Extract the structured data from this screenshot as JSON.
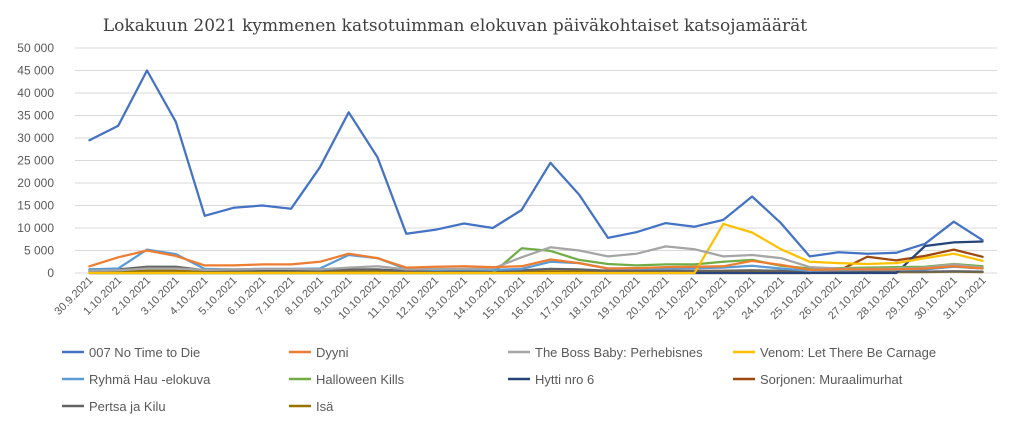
{
  "chart_data": {
    "type": "line",
    "title": "Lokakuun 2021 kymmenen katsotuimman elokuvan päiväkohtaiset katsojamäärät",
    "xlabel": "",
    "ylabel": "",
    "ylim": [
      0,
      50000
    ],
    "yticks": [
      0,
      5000,
      10000,
      15000,
      20000,
      25000,
      30000,
      35000,
      40000,
      45000,
      50000
    ],
    "ytick_labels": [
      "0",
      "5 000",
      "10 000",
      "15 000",
      "20 000",
      "25 000",
      "30 000",
      "35 000",
      "40 000",
      "45 000",
      "50 000"
    ],
    "grid": true,
    "legend_position": "bottom",
    "categories": [
      "30.9.2021",
      "1.10.2021",
      "2.10.2021",
      "3.10.2021",
      "4.10.2021",
      "5.10.2021",
      "6.10.2021",
      "7.10.2021",
      "8.10.2021",
      "9.10.2021",
      "10.10.2021",
      "11.10.2021",
      "12.10.2021",
      "13.10.2021",
      "14.10.2021",
      "15.10.2021",
      "16.10.2021",
      "17.10.2021",
      "18.10.2021",
      "19.10.2021",
      "20.10.2021",
      "21.10.2021",
      "22.10.2021",
      "23.10.2021",
      "24.10.2021",
      "25.10.2021",
      "26.10.2021",
      "27.10.2021",
      "28.10.2021",
      "29.10.2021",
      "30.10.2021",
      "31.10.2021"
    ],
    "series": [
      {
        "name": "007 No Time to Die",
        "color": "#4472c4",
        "values": [
          29500,
          32700,
          45000,
          33600,
          12700,
          14500,
          15000,
          14300,
          23500,
          35700,
          25700,
          8700,
          9600,
          11000,
          10000,
          14000,
          24500,
          17400,
          7800,
          9100,
          11100,
          10300,
          11800,
          17000,
          11100,
          3700,
          4600,
          4300,
          4500,
          6500,
          11400,
          7300
        ]
      },
      {
        "name": "Dyyni",
        "color": "#ed7d31",
        "values": [
          1500,
          3500,
          5000,
          3800,
          1700,
          1700,
          1900,
          1900,
          2500,
          4300,
          3300,
          1200,
          1400,
          1500,
          1300,
          1500,
          3000,
          2200,
          1000,
          1100,
          1300,
          1400,
          1500,
          2700,
          1800,
          700,
          800,
          800,
          800,
          1000,
          1500,
          1000
        ]
      },
      {
        "name": "The Boss Baby: Perhebisnes",
        "color": "#a5a5a5",
        "values": [
          500,
          600,
          1000,
          1000,
          700,
          800,
          900,
          900,
          800,
          1200,
          1500,
          800,
          900,
          900,
          1000,
          3500,
          5700,
          5000,
          3700,
          4300,
          5900,
          5300,
          3700,
          4000,
          3300,
          1300,
          1000,
          900,
          1000,
          1200,
          1900,
          1200
        ]
      },
      {
        "name": "Venom: Let There Be Carnage",
        "color": "#ffc000",
        "values": [
          0,
          0,
          0,
          0,
          0,
          0,
          0,
          0,
          0,
          0,
          0,
          0,
          0,
          0,
          0,
          0,
          0,
          0,
          0,
          0,
          0,
          0,
          10900,
          9000,
          5300,
          2500,
          2200,
          2000,
          2200,
          3300,
          4300,
          2700
        ]
      },
      {
        "name": "Ryhmä Hau -elokuva",
        "color": "#5b9bd5",
        "values": [
          800,
          1000,
          5200,
          4200,
          900,
          800,
          900,
          900,
          1000,
          4000,
          3300,
          900,
          700,
          800,
          700,
          900,
          2500,
          2200,
          1000,
          1000,
          1000,
          1100,
          1200,
          1600,
          1000,
          500,
          600,
          700,
          700,
          800,
          1400,
          1000
        ]
      },
      {
        "name": "Halloween Kills",
        "color": "#70ad47",
        "values": [
          0,
          0,
          0,
          0,
          0,
          0,
          0,
          0,
          0,
          0,
          0,
          0,
          0,
          0,
          0,
          5500,
          4900,
          2900,
          2000,
          1700,
          1900,
          1900,
          2500,
          2900,
          1600,
          1000,
          1100,
          1200,
          1300,
          1400,
          2000,
          1500
        ]
      },
      {
        "name": "Hytti nro 6",
        "color": "#264478",
        "values": [
          0,
          0,
          0,
          0,
          0,
          0,
          0,
          0,
          0,
          0,
          0,
          0,
          0,
          0,
          0,
          0,
          0,
          0,
          0,
          0,
          0,
          0,
          0,
          0,
          0,
          0,
          0,
          0,
          0,
          6000,
          6800,
          7000
        ]
      },
      {
        "name": "Sorjonen: Muraalimurhat",
        "color": "#9e480e",
        "values": [
          0,
          0,
          0,
          0,
          0,
          0,
          0,
          0,
          0,
          0,
          0,
          0,
          0,
          0,
          0,
          0,
          0,
          0,
          0,
          0,
          0,
          0,
          0,
          0,
          0,
          0,
          500,
          3600,
          2800,
          3800,
          5200,
          3600
        ]
      },
      {
        "name": "Pertsa ja Kilu",
        "color": "#636363",
        "values": [
          800,
          800,
          1400,
          1400,
          600,
          600,
          600,
          600,
          600,
          800,
          800,
          500,
          500,
          500,
          500,
          600,
          900,
          800,
          500,
          500,
          500,
          500,
          500,
          600,
          500,
          300,
          300,
          300,
          300,
          300,
          400,
          300
        ]
      },
      {
        "name": "Isä",
        "color": "#997300",
        "values": [
          300,
          300,
          500,
          500,
          300,
          300,
          300,
          300,
          300,
          500,
          500,
          300,
          300,
          300,
          300,
          300,
          400,
          400,
          300,
          300,
          300,
          300,
          300,
          400,
          300,
          200,
          200,
          200,
          200,
          200,
          300,
          200
        ]
      }
    ]
  }
}
